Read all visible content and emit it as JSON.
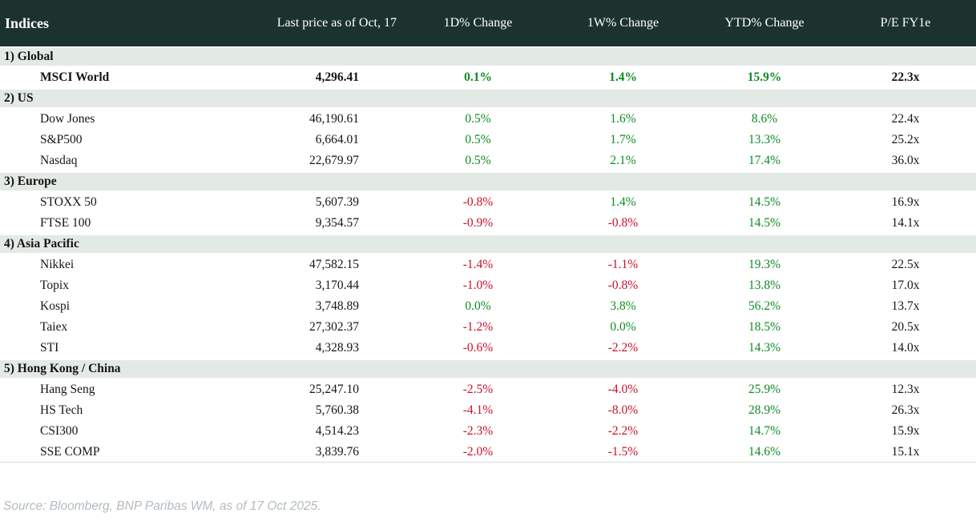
{
  "chart_data": {
    "type": "table",
    "title": "Indices",
    "columns": [
      "Last price as of Oct, 17",
      "1D% Change",
      "1W% Change",
      "YTD% Change",
      "P/E FY1e"
    ],
    "sections": [
      {
        "label": "1) Global",
        "rows": [
          {
            "name": "MSCI World",
            "last": "4,296.41",
            "d1": "0.1%",
            "w1": "1.4%",
            "ytd": "15.9%",
            "pe": "22.3x",
            "bold": true
          }
        ]
      },
      {
        "label": "2) US",
        "rows": [
          {
            "name": "Dow Jones",
            "last": "46,190.61",
            "d1": "0.5%",
            "w1": "1.6%",
            "ytd": "8.6%",
            "pe": "22.4x"
          },
          {
            "name": "S&P500",
            "last": "6,664.01",
            "d1": "0.5%",
            "w1": "1.7%",
            "ytd": "13.3%",
            "pe": "25.2x"
          },
          {
            "name": "Nasdaq",
            "last": "22,679.97",
            "d1": "0.5%",
            "w1": "2.1%",
            "ytd": "17.4%",
            "pe": "36.0x"
          }
        ]
      },
      {
        "label": "3) Europe",
        "rows": [
          {
            "name": "STOXX 50",
            "last": "5,607.39",
            "d1": "-0.8%",
            "w1": "1.4%",
            "ytd": "14.5%",
            "pe": "16.9x"
          },
          {
            "name": "FTSE 100",
            "last": "9,354.57",
            "d1": "-0.9%",
            "w1": "-0.8%",
            "ytd": "14.5%",
            "pe": "14.1x"
          }
        ]
      },
      {
        "label": "4) Asia Pacific",
        "rows": [
          {
            "name": "Nikkei",
            "last": "47,582.15",
            "d1": "-1.4%",
            "w1": "-1.1%",
            "ytd": "19.3%",
            "pe": "22.5x"
          },
          {
            "name": "Topix",
            "last": "3,170.44",
            "d1": "-1.0%",
            "w1": "-0.8%",
            "ytd": "13.8%",
            "pe": "17.0x"
          },
          {
            "name": "Kospi",
            "last": "3,748.89",
            "d1": "0.0%",
            "w1": "3.8%",
            "ytd": "56.2%",
            "pe": "13.7x"
          },
          {
            "name": "Taiex",
            "last": "27,302.37",
            "d1": "-1.2%",
            "w1": "0.0%",
            "ytd": "18.5%",
            "pe": "20.5x"
          },
          {
            "name": "STI",
            "last": "4,328.93",
            "d1": "-0.6%",
            "w1": "-2.2%",
            "ytd": "14.3%",
            "pe": "14.0x"
          }
        ]
      },
      {
        "label": "5) Hong Kong / China",
        "rows": [
          {
            "name": "Hang Seng",
            "last": "25,247.10",
            "d1": "-2.5%",
            "w1": "-4.0%",
            "ytd": "25.9%",
            "pe": "12.3x"
          },
          {
            "name": "HS Tech",
            "last": "5,760.38",
            "d1": "-4.1%",
            "w1": "-8.0%",
            "ytd": "28.9%",
            "pe": "26.3x"
          },
          {
            "name": "CSI300",
            "last": "4,514.23",
            "d1": "-2.3%",
            "w1": "-2.2%",
            "ytd": "14.7%",
            "pe": "15.9x"
          },
          {
            "name": "SSE COMP",
            "last": "3,839.76",
            "d1": "-2.0%",
            "w1": "-1.5%",
            "ytd": "14.6%",
            "pe": "15.1x"
          }
        ]
      }
    ],
    "layout": {
      "value_coloring": "negative values red, others green",
      "legend": "none",
      "grid": "off"
    },
    "colors": {
      "header_background": "#1c332d",
      "section_row_background": "#e3e9e4",
      "positive_change": "#0f8b24",
      "negative_change": "#c9102a"
    }
  },
  "footer": {
    "source": "Source: Bloomberg, BNP Paribas WM, as of 17 Oct 2025."
  }
}
